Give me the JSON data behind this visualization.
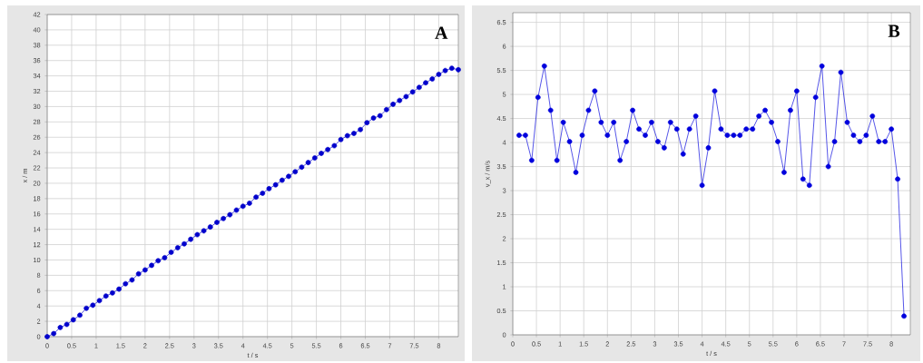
{
  "chart_data": [
    {
      "type": "line",
      "xlabel": "t / s",
      "ylabel": "x / m",
      "annotations": [
        "A"
      ],
      "marker": "circle",
      "grid": true,
      "xlim": [
        0,
        8.4
      ],
      "ylim": [
        0,
        42
      ],
      "xticks": [
        0,
        0.5,
        1,
        1.5,
        2,
        2.5,
        3,
        3.5,
        4,
        4.5,
        5,
        5.5,
        6,
        6.5,
        7,
        7.5,
        8
      ],
      "yticks": [
        0,
        2,
        4,
        6,
        8,
        10,
        12,
        14,
        16,
        18,
        20,
        22,
        24,
        26,
        28,
        30,
        32,
        34,
        36,
        38,
        40,
        42
      ],
      "series": [
        {
          "color": "#0000cc",
          "x": [
            0,
            0.133,
            0.267,
            0.4,
            0.533,
            0.667,
            0.8,
            0.933,
            1.067,
            1.2,
            1.333,
            1.467,
            1.6,
            1.733,
            1.867,
            2,
            2.133,
            2.267,
            2.4,
            2.533,
            2.667,
            2.8,
            2.933,
            3.067,
            3.2,
            3.333,
            3.467,
            3.6,
            3.733,
            3.867,
            4,
            4.133,
            4.267,
            4.4,
            4.533,
            4.667,
            4.8,
            4.933,
            5.067,
            5.2,
            5.333,
            5.467,
            5.6,
            5.733,
            5.867,
            6,
            6.133,
            6.267,
            6.4,
            6.533,
            6.667,
            6.8,
            6.933,
            7.067,
            7.2,
            7.333,
            7.467,
            7.6,
            7.733,
            7.867,
            8,
            8.133,
            8.267,
            8.4
          ],
          "values": [
            0,
            0.4,
            1.2,
            1.6,
            2.2,
            2.8,
            3.7,
            4.1,
            4.7,
            5.3,
            5.7,
            6.2,
            6.9,
            7.4,
            8.2,
            8.7,
            9.3,
            9.9,
            10.3,
            11.0,
            11.6,
            12.1,
            12.7,
            13.3,
            13.8,
            14.3,
            14.9,
            15.4,
            15.9,
            16.5,
            17.0,
            17.4,
            18.2,
            18.7,
            19.3,
            19.8,
            20.4,
            20.9,
            21.5,
            22.1,
            22.7,
            23.3,
            23.9,
            24.4,
            24.9,
            25.7,
            26.2,
            26.5,
            27.0,
            27.9,
            28.5,
            28.8,
            29.6,
            30.3,
            30.8,
            31.3,
            31.9,
            32.5,
            33.1,
            33.6,
            34.2,
            34.7,
            35.0,
            34.8
          ]
        }
      ]
    },
    {
      "type": "line",
      "xlabel": "t / s",
      "ylabel": "v_x / m/s",
      "annotations": [
        "B"
      ],
      "marker": "circle",
      "grid": true,
      "xlim": [
        0,
        8.4
      ],
      "ylim": [
        0,
        6.7
      ],
      "xticks": [
        0,
        0.5,
        1,
        1.5,
        2,
        2.5,
        3,
        3.5,
        4,
        4.5,
        5,
        5.5,
        6,
        6.5,
        7,
        7.5,
        8
      ],
      "yticks": [
        0,
        0.5,
        1,
        1.5,
        2,
        2.5,
        3,
        3.5,
        4,
        4.5,
        5,
        5.5,
        6,
        6.5
      ],
      "series": [
        {
          "color": "#0000dd",
          "x": [
            0.133,
            0.267,
            0.4,
            0.533,
            0.667,
            0.8,
            0.933,
            1.067,
            1.2,
            1.333,
            1.467,
            1.6,
            1.733,
            1.867,
            2,
            2.133,
            2.267,
            2.4,
            2.533,
            2.667,
            2.8,
            2.933,
            3.067,
            3.2,
            3.333,
            3.467,
            3.6,
            3.733,
            3.867,
            4,
            4.133,
            4.267,
            4.4,
            4.533,
            4.667,
            4.8,
            4.933,
            5.067,
            5.2,
            5.333,
            5.467,
            5.6,
            5.733,
            5.867,
            6,
            6.133,
            6.267,
            6.4,
            6.533,
            6.667,
            6.8,
            6.933,
            7.067,
            7.2,
            7.333,
            7.467,
            7.6,
            7.733,
            7.867,
            8,
            8.133,
            8.267
          ],
          "values": [
            4.15,
            4.15,
            3.63,
            4.94,
            5.59,
            4.67,
            3.63,
            4.42,
            4.02,
            3.38,
            4.15,
            4.67,
            5.07,
            4.42,
            4.15,
            4.42,
            3.63,
            4.02,
            4.67,
            4.28,
            4.15,
            4.42,
            4.02,
            3.89,
            4.42,
            4.28,
            3.76,
            4.28,
            4.55,
            3.11,
            3.89,
            5.07,
            4.28,
            4.15,
            4.15,
            4.15,
            4.28,
            4.28,
            4.55,
            4.67,
            4.42,
            4.02,
            3.38,
            4.67,
            5.07,
            3.24,
            3.11,
            4.94,
            5.59,
            3.5,
            4.02,
            5.46,
            4.42,
            4.15,
            4.02,
            4.15,
            4.55,
            4.02,
            4.02,
            4.28,
            3.24,
            0.39
          ]
        }
      ]
    }
  ]
}
